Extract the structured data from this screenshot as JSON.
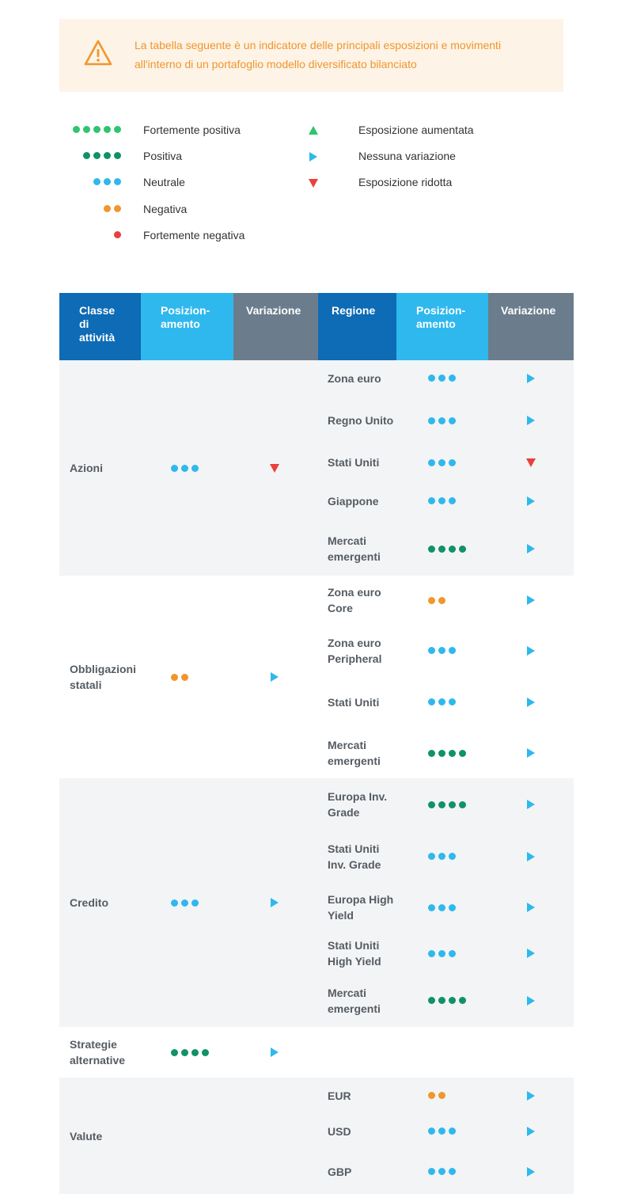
{
  "notice": {
    "text": "La tabella seguente è un indicatore delle principali esposizioni e movimenti all'interno di un portafoglio modello diversificato bilanciato",
    "icon": "warning-icon"
  },
  "legend": {
    "ratings": [
      {
        "label": "Fortemente positiva",
        "dots": 5,
        "color": "#2fc46e"
      },
      {
        "label": "Positiva",
        "dots": 4,
        "color": "#109266"
      },
      {
        "label": "Neutrale",
        "dots": 3,
        "color": "#2fb8ed"
      },
      {
        "label": "Negativa",
        "dots": 2,
        "color": "#f0962d"
      },
      {
        "label": "Fortemente negativa",
        "dots": 1,
        "color": "#e8413b"
      }
    ],
    "changes": [
      {
        "label": "Esposizione aumentata",
        "icon": "triangle-up-icon",
        "color": "#2fc46e"
      },
      {
        "label": "Nessuna variazione",
        "icon": "triangle-right-icon",
        "color": "#2fb8ed"
      },
      {
        "label": "Esposizione ridotta",
        "icon": "triangle-down-icon",
        "color": "#e8413b"
      }
    ]
  },
  "table": {
    "headers": {
      "asset": "Classe di attività",
      "pos": "Posizion-amento",
      "var": "Variazione",
      "region": "Regione",
      "pos2": "Posizion-amento",
      "var2": "Variazione"
    },
    "groups": [
      {
        "asset": "Azioni",
        "dots": 3,
        "change": "down",
        "shade": "grey",
        "rows": [
          {
            "region": "Zona euro",
            "dots": 3,
            "change": "right"
          },
          {
            "region": "Regno Unito",
            "dots": 3,
            "change": "right"
          },
          {
            "region": "Stati Uniti",
            "dots": 3,
            "change": "down"
          },
          {
            "region": "Giappone",
            "dots": 3,
            "change": "right"
          },
          {
            "region": "Mercati emergenti",
            "dots": 4,
            "change": "right"
          }
        ]
      },
      {
        "asset": "Obbligazioni statali",
        "dots": 2,
        "change": "right",
        "shade": "white",
        "rows": [
          {
            "region": "Zona euro Core",
            "dots": 2,
            "change": "right"
          },
          {
            "region": "Zona euro Peripheral",
            "dots": 3,
            "change": "right"
          },
          {
            "region": "Stati Uniti",
            "dots": 3,
            "change": "right"
          },
          {
            "region": "Mercati emergenti",
            "dots": 4,
            "change": "right"
          }
        ]
      },
      {
        "asset": "Credito",
        "dots": 3,
        "change": "right",
        "shade": "grey",
        "rows": [
          {
            "region": "Europa Inv. Grade",
            "dots": 4,
            "change": "right"
          },
          {
            "region": "Stati Uniti Inv. Grade",
            "dots": 3,
            "change": "right"
          },
          {
            "region": "Europa High Yield",
            "dots": 3,
            "change": "right"
          },
          {
            "region": "Stati Uniti High Yield",
            "dots": 3,
            "change": "right"
          },
          {
            "region": "Mercati emergenti",
            "dots": 4,
            "change": "right"
          }
        ]
      },
      {
        "asset": "Strategie alternative",
        "dots": 4,
        "change": "right",
        "shade": "white",
        "rows": [
          {
            "region": "",
            "dots": 0,
            "change": ""
          }
        ]
      },
      {
        "asset": "Valute",
        "dots": 0,
        "change": "",
        "shade": "grey",
        "rows": [
          {
            "region": "EUR",
            "dots": 2,
            "change": "right"
          },
          {
            "region": "USD",
            "dots": 3,
            "change": "right"
          },
          {
            "region": "GBP",
            "dots": 3,
            "change": "right"
          }
        ]
      }
    ]
  },
  "colors": {
    "dark_blue": "#0e6bb5",
    "light_blue": "#2fb8ed",
    "slate": "#6b7d8c",
    "green": "#2fc46e",
    "dark_green": "#109266",
    "orange": "#f0962d",
    "red": "#e8413b",
    "notice_bg": "#fdf3e6"
  }
}
